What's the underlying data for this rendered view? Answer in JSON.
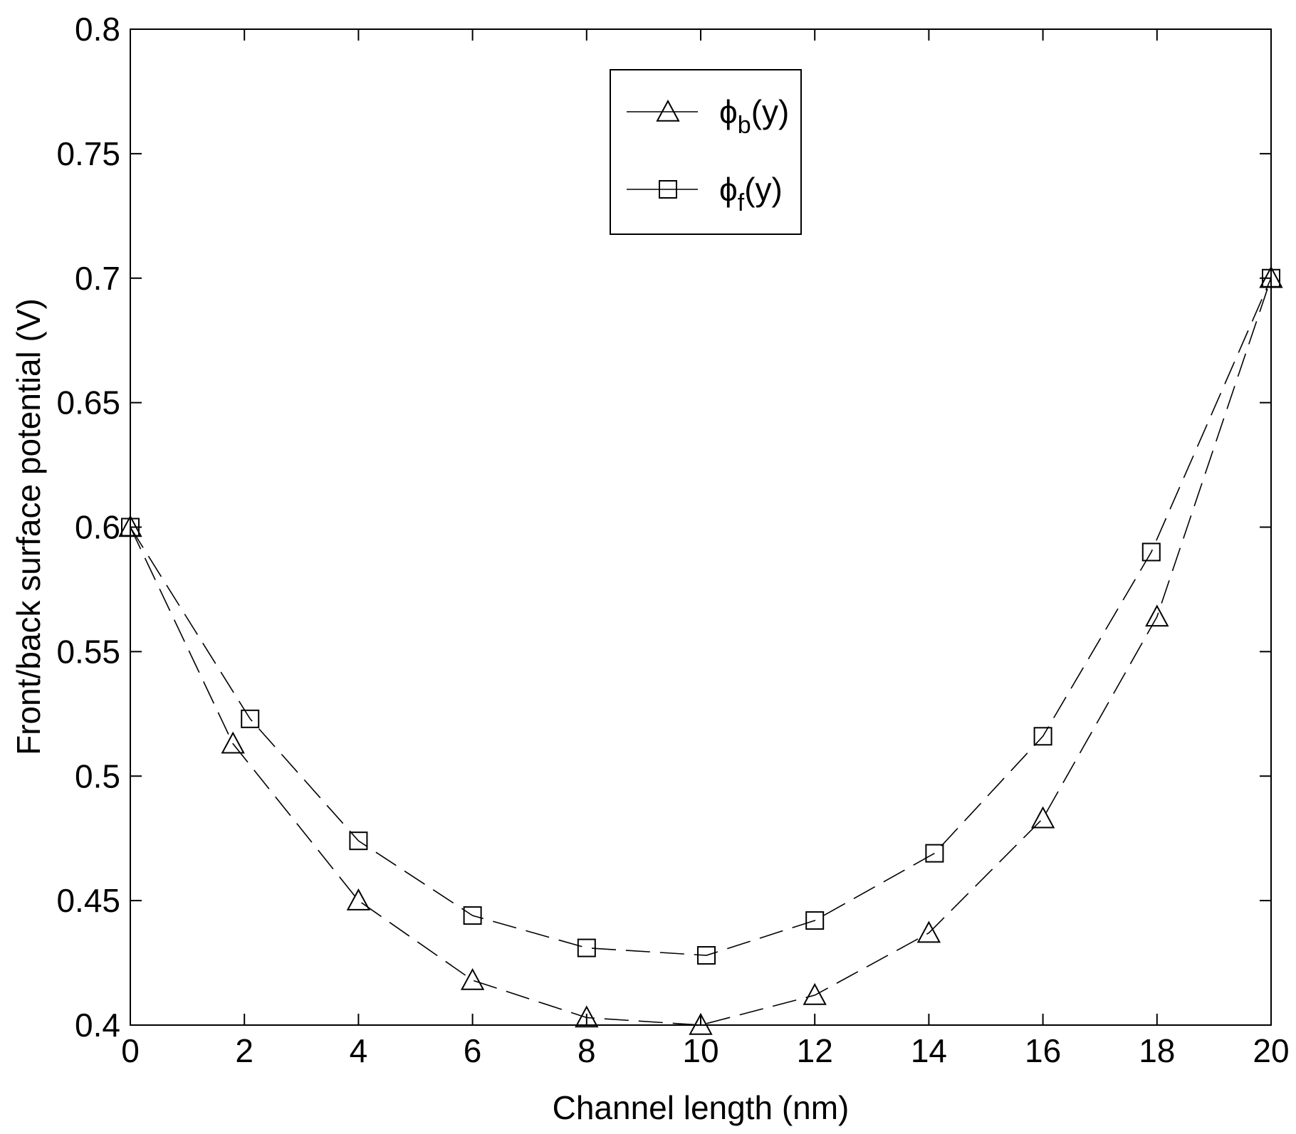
{
  "chart_data": {
    "type": "line",
    "xlabel": "Channel length (nm)",
    "ylabel": "Front/back surface potential (V)",
    "xlim": [
      0,
      20
    ],
    "ylim": [
      0.4,
      0.8
    ],
    "xticks": [
      "0",
      "2",
      "4",
      "6",
      "8",
      "10",
      "12",
      "14",
      "16",
      "18",
      "20"
    ],
    "yticks": [
      "0.4",
      "0.45",
      "0.5",
      "0.55",
      "0.6",
      "0.65",
      "0.7",
      "0.75",
      "0.8"
    ],
    "grid": false,
    "legend_position": "top-center",
    "series": [
      {
        "name_main": "ϕ",
        "name_sub": "b",
        "name_tail": "(y)",
        "marker": "triangle",
        "line_style": "dashed",
        "x": [
          0,
          1.8,
          4,
          6,
          8,
          10,
          12,
          14,
          16,
          18,
          20
        ],
        "y": [
          0.6,
          0.513,
          0.45,
          0.418,
          0.403,
          0.4,
          0.412,
          0.437,
          0.483,
          0.564,
          0.7
        ]
      },
      {
        "name_main": "ϕ",
        "name_sub": "f",
        "name_tail": "(y)",
        "marker": "square",
        "line_style": "dashed",
        "x": [
          0,
          2.1,
          4,
          6,
          8,
          10.1,
          12,
          14.1,
          16,
          17.9,
          20
        ],
        "y": [
          0.6,
          0.523,
          0.474,
          0.444,
          0.431,
          0.428,
          0.442,
          0.469,
          0.516,
          0.59,
          0.7
        ]
      }
    ]
  }
}
